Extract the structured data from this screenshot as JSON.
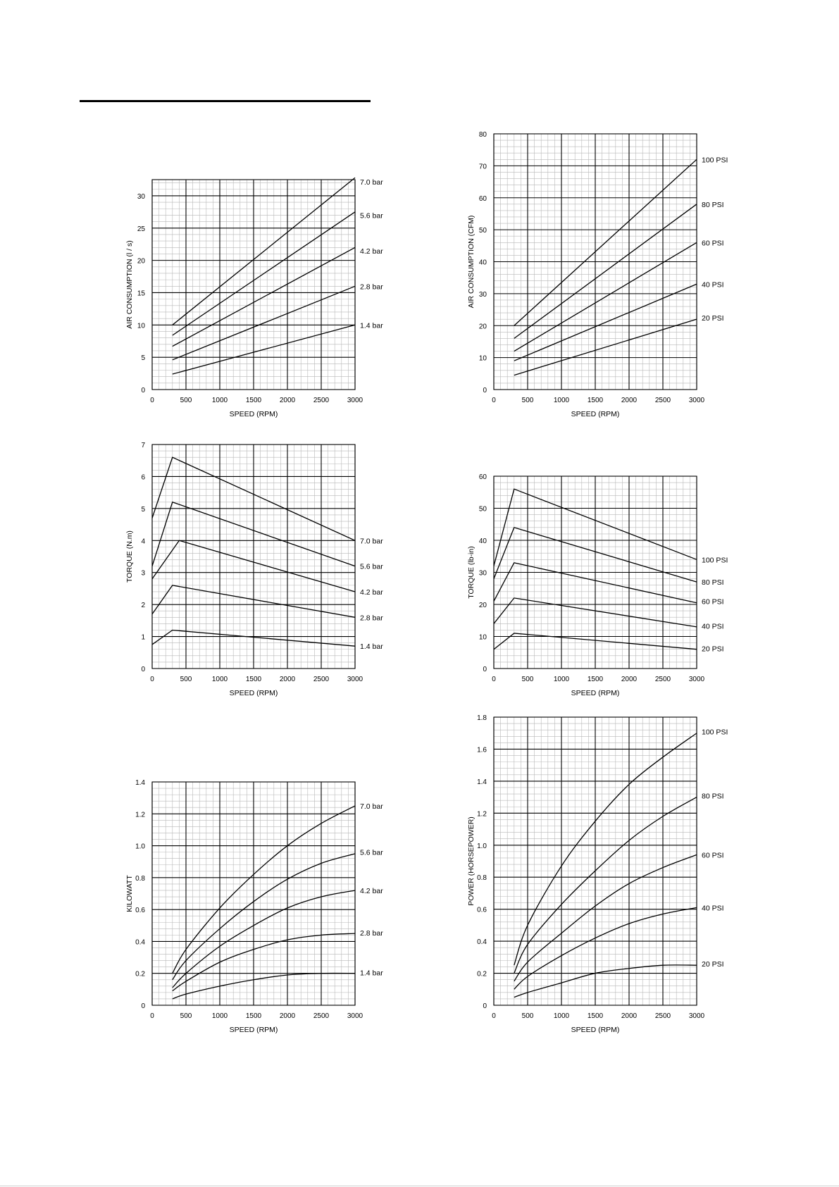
{
  "page": {
    "background": "#ffffff",
    "line_color": "#000000",
    "grid_major": "#000000",
    "grid_minor": "#b8b8b8"
  },
  "chart_data": [
    {
      "id": "air-l",
      "type": "line",
      "xlabel": "SPEED (RPM)",
      "ylabel": "AIR CONSUMPTION (l / s)",
      "xlim": [
        0,
        3000
      ],
      "ylim": [
        0,
        32.5
      ],
      "x_ticks": [
        0,
        500,
        1000,
        1500,
        2000,
        2500,
        3000
      ],
      "y_ticks": [
        0,
        5,
        10,
        15,
        20,
        25,
        30
      ],
      "y_tick_labels": [
        "0",
        "5",
        "10",
        "15",
        "20",
        "25",
        "30"
      ],
      "grid": true,
      "legend": "labels at right end of each line",
      "series": [
        {
          "name": "7.0 bar",
          "x": [
            300,
            3000
          ],
          "y": [
            10.0,
            32.8
          ]
        },
        {
          "name": "5.6 bar",
          "x": [
            300,
            3000
          ],
          "y": [
            8.4,
            27.5
          ]
        },
        {
          "name": "4.2 bar",
          "x": [
            300,
            3000
          ],
          "y": [
            6.7,
            22.0
          ]
        },
        {
          "name": "2.8 bar",
          "x": [
            300,
            3000
          ],
          "y": [
            4.6,
            16.0
          ]
        },
        {
          "name": "1.4 bar",
          "x": [
            300,
            3000
          ],
          "y": [
            2.4,
            10.0
          ]
        }
      ],
      "label_y": [
        32.2,
        27.0,
        21.5,
        16.0,
        10.0
      ]
    },
    {
      "id": "air-cfm",
      "type": "line",
      "xlabel": "SPEED (RPM)",
      "ylabel": "AIR CONSUMPTION (CFM)",
      "xlim": [
        0,
        3000
      ],
      "ylim": [
        0,
        80
      ],
      "x_ticks": [
        0,
        500,
        1000,
        1500,
        2000,
        2500,
        3000
      ],
      "y_ticks": [
        0,
        10,
        20,
        30,
        40,
        50,
        60,
        70,
        80
      ],
      "y_tick_labels": [
        "0",
        "10",
        "20",
        "30",
        "40",
        "50",
        "60",
        "70",
        "80"
      ],
      "grid": true,
      "legend": "labels at right end of each line",
      "series": [
        {
          "name": "100 PSI",
          "x": [
            300,
            3000
          ],
          "y": [
            20.0,
            72.0
          ]
        },
        {
          "name": "80 PSI",
          "x": [
            300,
            3000
          ],
          "y": [
            16.0,
            58.0
          ]
        },
        {
          "name": "60 PSI",
          "x": [
            300,
            3000
          ],
          "y": [
            12.0,
            46.0
          ]
        },
        {
          "name": "40 PSI",
          "x": [
            300,
            3000
          ],
          "y": [
            9.0,
            33.0
          ]
        },
        {
          "name": "20 PSI",
          "x": [
            300,
            3000
          ],
          "y": [
            4.5,
            22.0
          ]
        }
      ],
      "label_y": [
        72.0,
        58.0,
        46.0,
        33.0,
        22.5
      ]
    },
    {
      "id": "torque-nm",
      "type": "line",
      "xlabel": "SPEED (RPM)",
      "ylabel": "TORQUE (N.m)",
      "xlim": [
        0,
        3000
      ],
      "ylim": [
        0,
        7
      ],
      "x_ticks": [
        0,
        500,
        1000,
        1500,
        2000,
        2500,
        3000
      ],
      "y_ticks": [
        0,
        1,
        2,
        3,
        4,
        5,
        6,
        7
      ],
      "y_tick_labels": [
        "0",
        "1",
        "2",
        "3",
        "4",
        "5",
        "6",
        "7"
      ],
      "grid": true,
      "legend": "labels at right end of each line",
      "series": [
        {
          "name": "7.0 bar",
          "x": [
            0,
            300,
            3000
          ],
          "y": [
            4.7,
            6.6,
            4.0
          ]
        },
        {
          "name": "5.6 bar",
          "x": [
            0,
            300,
            3000
          ],
          "y": [
            3.2,
            5.2,
            3.2
          ]
        },
        {
          "name": "4.2 bar",
          "x": [
            0,
            400,
            3000
          ],
          "y": [
            2.8,
            4.0,
            2.4
          ]
        },
        {
          "name": "2.8 bar",
          "x": [
            0,
            300,
            3000
          ],
          "y": [
            1.7,
            2.6,
            1.6
          ]
        },
        {
          "name": "1.4 bar",
          "x": [
            0,
            300,
            3000
          ],
          "y": [
            0.75,
            1.2,
            0.7
          ]
        }
      ],
      "label_y": [
        4.0,
        3.2,
        2.4,
        1.6,
        0.7
      ]
    },
    {
      "id": "torque-lbin",
      "type": "line",
      "xlabel": "SPEED (RPM)",
      "ylabel": "TORQUE (lb-in)",
      "xlim": [
        0,
        3000
      ],
      "ylim": [
        0,
        60
      ],
      "x_ticks": [
        0,
        500,
        1000,
        1500,
        2000,
        2500,
        3000
      ],
      "y_ticks": [
        0,
        10,
        20,
        30,
        40,
        50,
        60
      ],
      "y_tick_labels": [
        "0",
        "10",
        "20",
        "30",
        "40",
        "50",
        "60"
      ],
      "grid": true,
      "legend": "labels at right end of each line",
      "series": [
        {
          "name": "100 PSI",
          "x": [
            0,
            300,
            3000
          ],
          "y": [
            32.0,
            56.0,
            34.0
          ]
        },
        {
          "name": "80 PSI",
          "x": [
            0,
            300,
            3000
          ],
          "y": [
            28.0,
            44.0,
            27.0
          ]
        },
        {
          "name": "60 PSI",
          "x": [
            0,
            300,
            3000
          ],
          "y": [
            21.0,
            33.0,
            20.5
          ]
        },
        {
          "name": "40 PSI",
          "x": [
            0,
            300,
            3000
          ],
          "y": [
            14.0,
            22.0,
            13.0
          ]
        },
        {
          "name": "20 PSI",
          "x": [
            0,
            300,
            3000
          ],
          "y": [
            6.0,
            11.0,
            6.0
          ]
        }
      ],
      "label_y": [
        34.0,
        27.0,
        21.0,
        13.3,
        6.3
      ]
    },
    {
      "id": "kilowatt",
      "type": "line",
      "xlabel": "SPEED (RPM)",
      "ylabel": "KILOWATT",
      "xlim": [
        0,
        3000
      ],
      "ylim": [
        0,
        1.4
      ],
      "x_ticks": [
        0,
        500,
        1000,
        1500,
        2000,
        2500,
        3000
      ],
      "y_ticks": [
        0,
        0.2,
        0.4,
        0.6,
        0.8,
        1.0,
        1.2,
        1.4
      ],
      "y_tick_labels": [
        "0",
        "0.2",
        "0.4",
        "0.6",
        "0.8",
        "1.0",
        "1.2",
        "1.4"
      ],
      "grid": true,
      "legend": "labels at right end of each line",
      "series": [
        {
          "name": "7.0 bar",
          "x": [
            300,
            500,
            1000,
            1500,
            2000,
            2500,
            3000
          ],
          "y": [
            0.2,
            0.35,
            0.61,
            0.82,
            1.0,
            1.14,
            1.25
          ]
        },
        {
          "name": "5.6 bar",
          "x": [
            300,
            500,
            1000,
            1500,
            2000,
            2500,
            3000
          ],
          "y": [
            0.16,
            0.28,
            0.48,
            0.65,
            0.79,
            0.89,
            0.95
          ]
        },
        {
          "name": "4.2 bar",
          "x": [
            300,
            500,
            1000,
            1500,
            2000,
            2500,
            3000
          ],
          "y": [
            0.11,
            0.2,
            0.37,
            0.5,
            0.61,
            0.68,
            0.72
          ]
        },
        {
          "name": "2.8 bar",
          "x": [
            300,
            500,
            1000,
            1500,
            2000,
            2500,
            3000
          ],
          "y": [
            0.09,
            0.15,
            0.27,
            0.35,
            0.41,
            0.44,
            0.45
          ]
        },
        {
          "name": "1.4 bar",
          "x": [
            300,
            500,
            1000,
            1500,
            2000,
            2500,
            3000
          ],
          "y": [
            0.04,
            0.07,
            0.12,
            0.16,
            0.19,
            0.2,
            0.2
          ]
        }
      ],
      "label_y": [
        1.25,
        0.96,
        0.72,
        0.455,
        0.205
      ]
    },
    {
      "id": "horsepower",
      "type": "line",
      "xlabel": "SPEED (RPM)",
      "ylabel": "POWER (HORSEPOWER)",
      "xlim": [
        0,
        3000
      ],
      "ylim": [
        0,
        1.8
      ],
      "x_ticks": [
        0,
        500,
        1000,
        1500,
        2000,
        2500,
        3000
      ],
      "y_ticks": [
        0,
        0.2,
        0.4,
        0.6,
        0.8,
        1.0,
        1.2,
        1.4,
        1.6,
        1.8
      ],
      "y_tick_labels": [
        "0",
        "0.2",
        "0.4",
        "0.6",
        "0.8",
        "1.0",
        "1.2",
        "1.4",
        "1.6",
        "1.8"
      ],
      "grid": true,
      "legend": "labels at right end of each line",
      "series": [
        {
          "name": "100 PSI",
          "x": [
            300,
            500,
            1000,
            1500,
            2000,
            2500,
            3000
          ],
          "y": [
            0.25,
            0.5,
            0.87,
            1.15,
            1.38,
            1.55,
            1.7
          ]
        },
        {
          "name": "80 PSI",
          "x": [
            300,
            500,
            1000,
            1500,
            2000,
            2500,
            3000
          ],
          "y": [
            0.2,
            0.38,
            0.63,
            0.84,
            1.03,
            1.18,
            1.3
          ]
        },
        {
          "name": "60 PSI",
          "x": [
            300,
            500,
            1000,
            1500,
            2000,
            2500,
            3000
          ],
          "y": [
            0.15,
            0.27,
            0.45,
            0.62,
            0.76,
            0.86,
            0.94
          ]
        },
        {
          "name": "40 PSI",
          "x": [
            300,
            500,
            1000,
            1500,
            2000,
            2500,
            3000
          ],
          "y": [
            0.1,
            0.18,
            0.31,
            0.42,
            0.51,
            0.57,
            0.61
          ]
        },
        {
          "name": "20 PSI",
          "x": [
            300,
            500,
            1000,
            1500,
            2000,
            2500,
            3000
          ],
          "y": [
            0.05,
            0.08,
            0.14,
            0.2,
            0.23,
            0.25,
            0.25
          ]
        }
      ],
      "label_y": [
        1.71,
        1.31,
        0.94,
        0.61,
        0.26
      ]
    }
  ]
}
